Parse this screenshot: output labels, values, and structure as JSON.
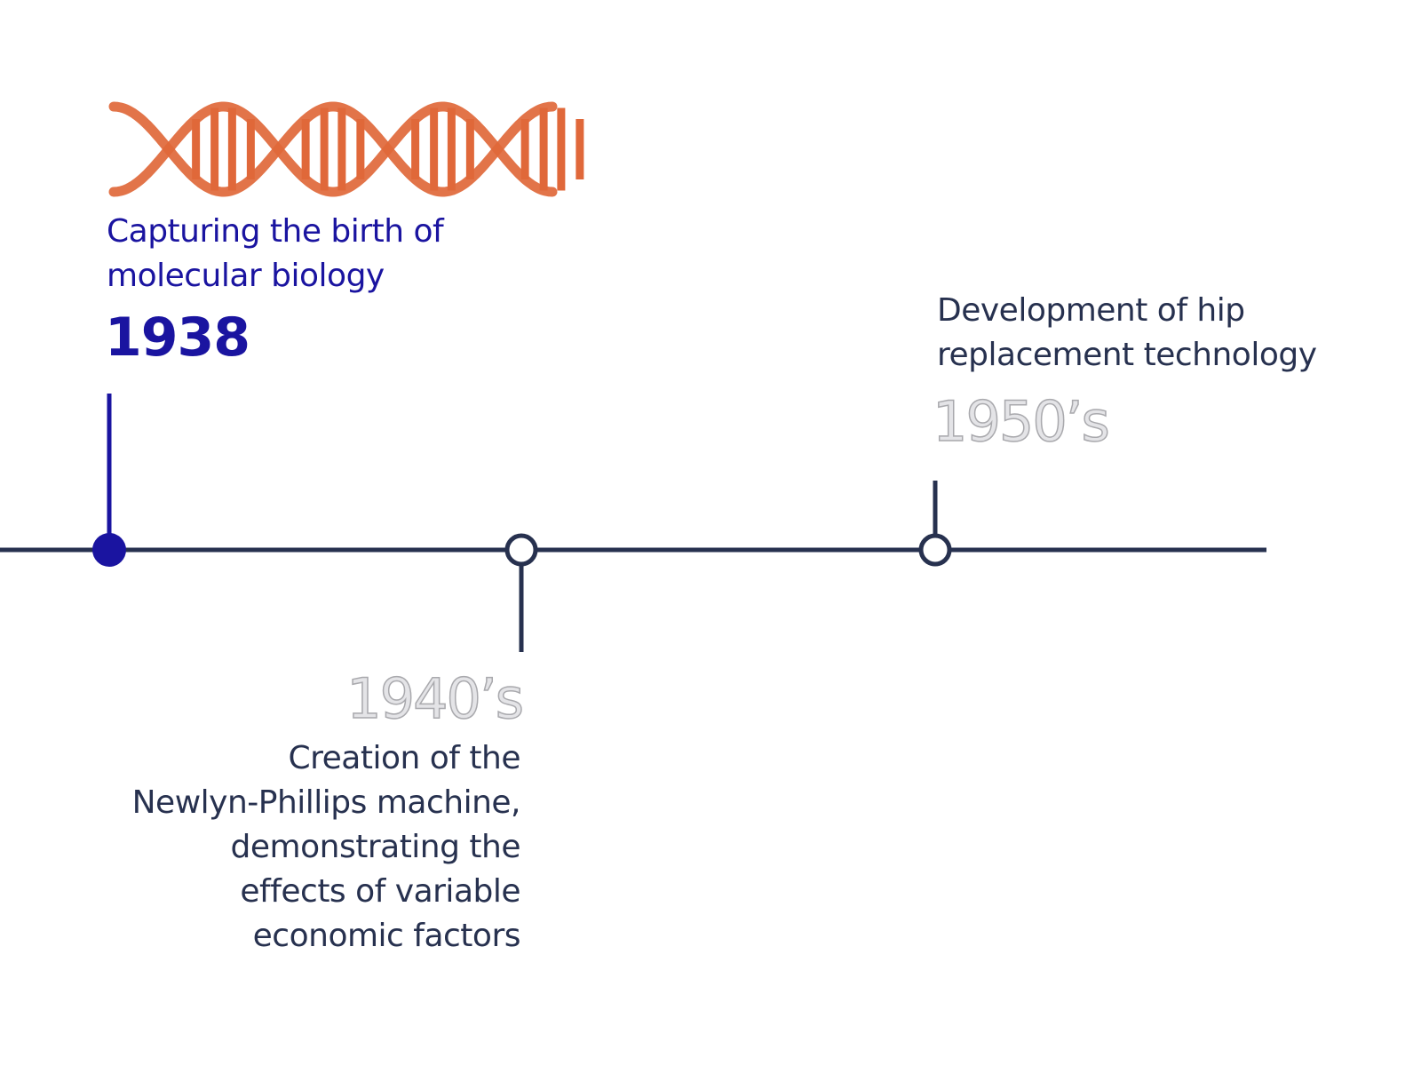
{
  "colors": {
    "accent": "#1a14a0",
    "line": "#27314f",
    "dna": "#e0683a",
    "outline_year": "#a9a9ad"
  },
  "icon": "dna-helix-icon",
  "events": [
    {
      "year": "1938",
      "title_lines": [
        "Capturing the birth of",
        "molecular biology"
      ],
      "active": true
    },
    {
      "year": "1940’s",
      "title_lines": [
        "Creation of the",
        "Newlyn-Phillips machine,",
        "demonstrating the",
        "effects of variable",
        "economic factors"
      ],
      "active": false
    },
    {
      "year": "1950’s",
      "title_lines": [
        "Development of hip",
        "replacement technology"
      ],
      "active": false
    }
  ]
}
